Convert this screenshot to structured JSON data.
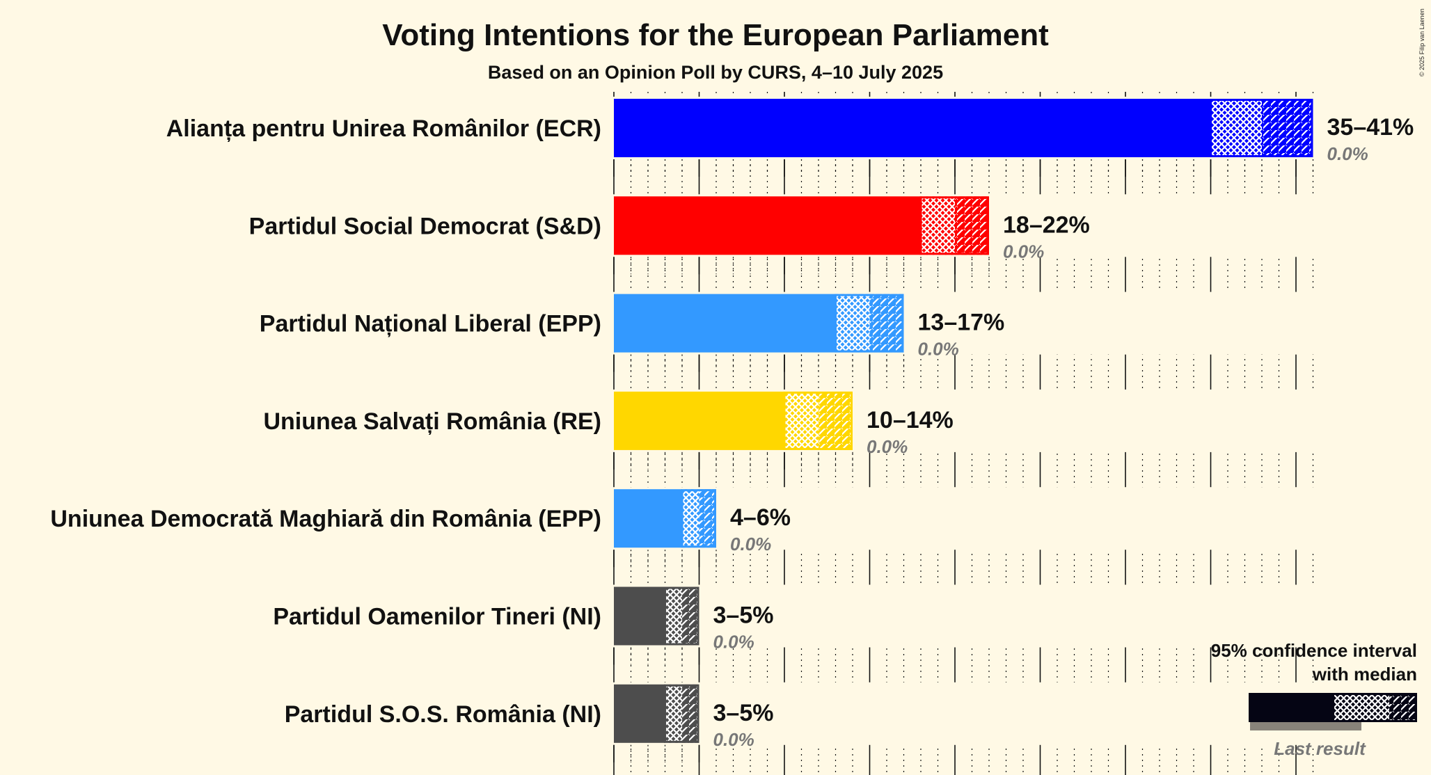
{
  "chart_data": {
    "type": "bar",
    "title": "Voting Intentions for the European Parliament",
    "subtitle": "Based on an Opinion Poll by CURS, 4–10 July 2025",
    "copyright": "© 2025 Filip van Laenen",
    "xlim": [
      0,
      41
    ],
    "series": [
      {
        "name": "Alianța pentru Unirea Românilor (ECR)",
        "ci_low": 35,
        "ci_high": 41,
        "median": 38,
        "range_label": "35–41%",
        "last_result": 0.0,
        "last_label": "0.0%",
        "color": "#0000FF"
      },
      {
        "name": "Partidul Social Democrat (S&D)",
        "ci_low": 18,
        "ci_high": 22,
        "median": 20,
        "range_label": "18–22%",
        "last_result": 0.0,
        "last_label": "0.0%",
        "color": "#FF0000"
      },
      {
        "name": "Partidul Național Liberal (EPP)",
        "ci_low": 13,
        "ci_high": 17,
        "median": 15,
        "range_label": "13–17%",
        "last_result": 0.0,
        "last_label": "0.0%",
        "color": "#3399FF"
      },
      {
        "name": "Uniunea Salvați România (RE)",
        "ci_low": 10,
        "ci_high": 14,
        "median": 12,
        "range_label": "10–14%",
        "last_result": 0.0,
        "last_label": "0.0%",
        "color": "#FFD700"
      },
      {
        "name": "Uniunea Democrată Maghiară din România (EPP)",
        "ci_low": 4,
        "ci_high": 6,
        "median": 5,
        "range_label": "4–6%",
        "last_result": 0.0,
        "last_label": "0.0%",
        "color": "#3399FF"
      },
      {
        "name": "Partidul Oamenilor Tineri (NI)",
        "ci_low": 3,
        "ci_high": 5,
        "median": 4,
        "range_label": "3–5%",
        "last_result": 0.0,
        "last_label": "0.0%",
        "color": "#4D4D4D"
      },
      {
        "name": "Partidul S.O.S. România (NI)",
        "ci_low": 3,
        "ci_high": 5,
        "median": 4,
        "range_label": "3–5%",
        "last_result": 0.0,
        "last_label": "0.0%",
        "color": "#4D4D4D"
      }
    ],
    "legend": {
      "line1": "95% confidence interval",
      "line2": "with median",
      "last": "Last result",
      "color": "#050514"
    }
  }
}
